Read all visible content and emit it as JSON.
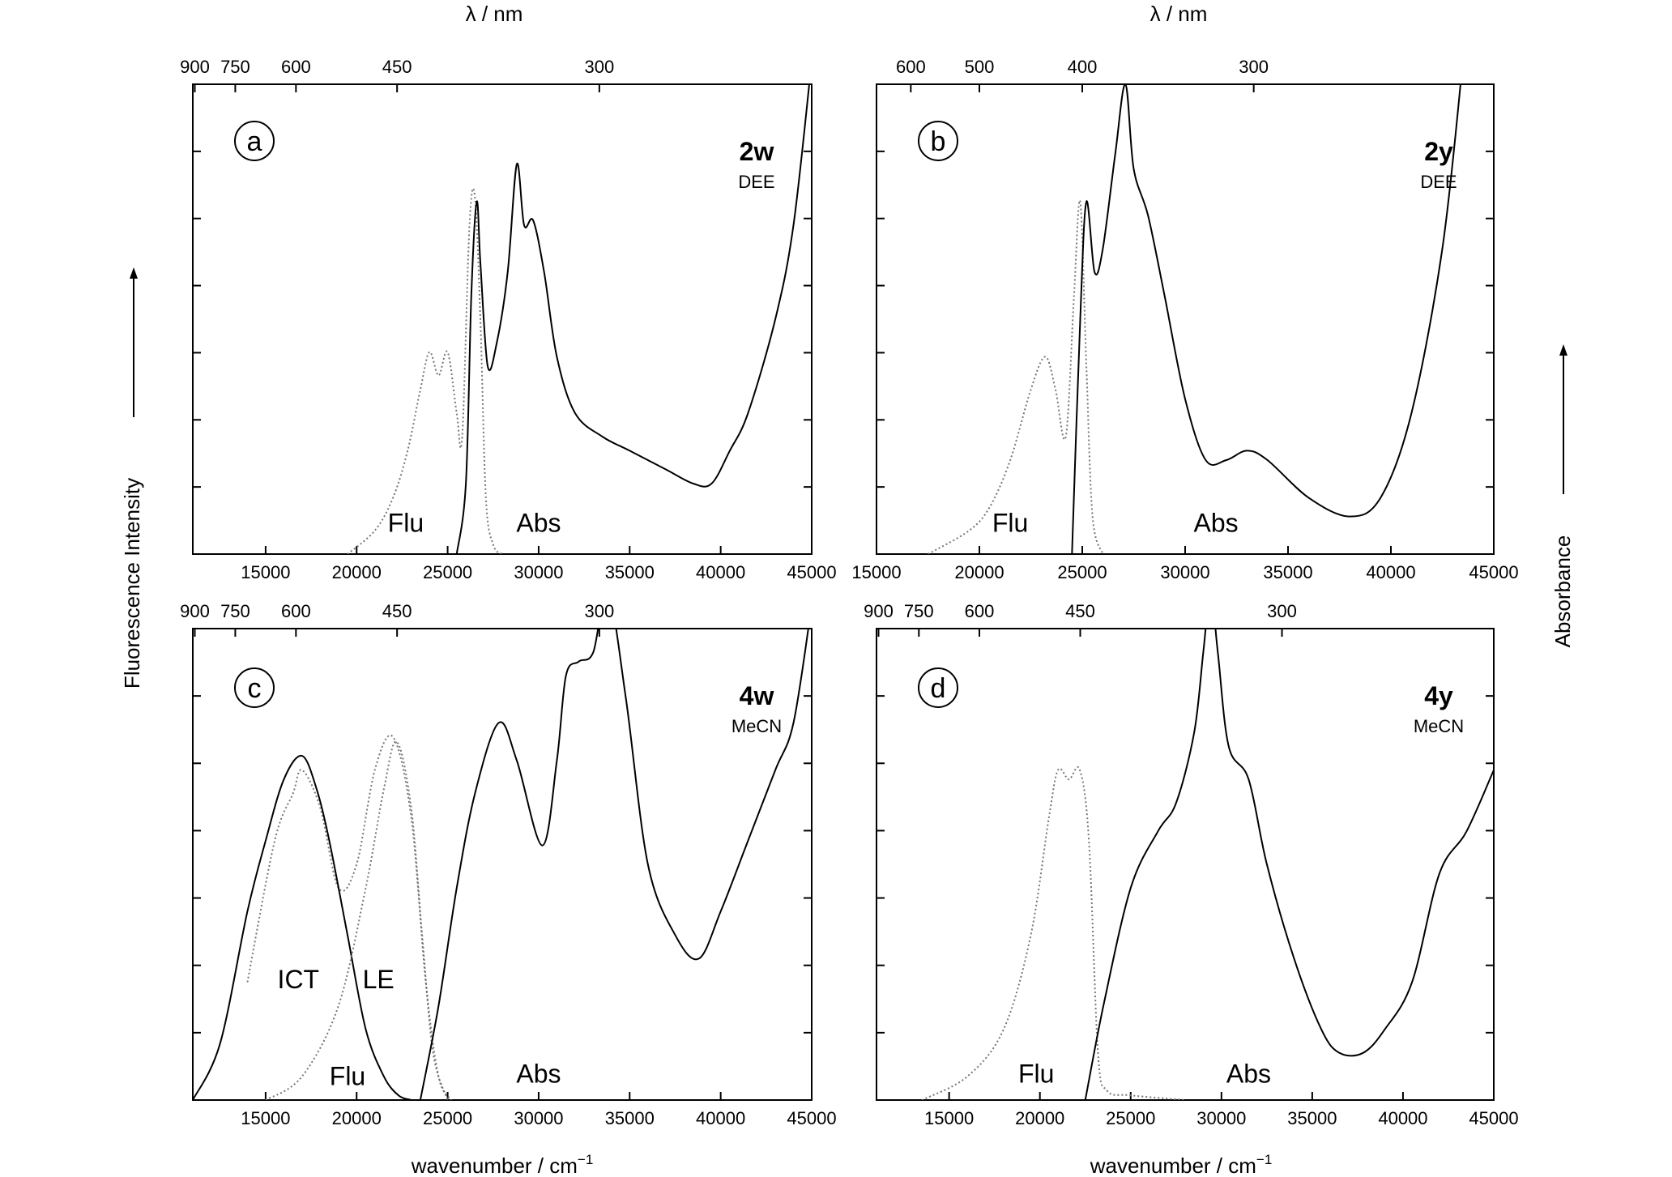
{
  "figure": {
    "top_axis_label": "λ / nm",
    "bottom_axis_label_base": "wavenumber / cm",
    "bottom_axis_label_sup": "−1",
    "left_axis_label": "Fluorescence Intensity",
    "right_axis_label": "Absorbance"
  },
  "chart_data": [
    {
      "type": "line",
      "panel": "a",
      "compound": "2w",
      "solvent": "DEE",
      "xlabel": "wavenumber / cm−1",
      "x2label": "λ / nm",
      "xlim": [
        11000,
        45000
      ],
      "ylim": [
        0,
        1
      ],
      "bottom_ticks": [
        "15000",
        "20000",
        "25000",
        "30000",
        "35000",
        "40000",
        "45000"
      ],
      "top_ticks": [
        "900",
        "750",
        "600",
        "450",
        "300"
      ],
      "labels": [
        "Flu",
        "Abs"
      ],
      "series": [
        {
          "name": "Flu",
          "style": "dotted",
          "x": [
            19500,
            21000,
            22000,
            22800,
            23500,
            24000,
            24500,
            25000,
            25500,
            25800,
            26200,
            26500,
            26800,
            27100,
            27500,
            28000
          ],
          "values": [
            0.0,
            0.05,
            0.12,
            0.22,
            0.35,
            0.43,
            0.38,
            0.43,
            0.3,
            0.25,
            0.7,
            0.76,
            0.5,
            0.12,
            0.02,
            0.0
          ]
        },
        {
          "name": "Abs",
          "style": "solid",
          "x": [
            25500,
            26000,
            26300,
            26600,
            26800,
            27200,
            27700,
            28300,
            28800,
            29200,
            29700,
            30300,
            31000,
            32000,
            33500,
            35000,
            37000,
            38500,
            39500,
            40500,
            41500,
            43000,
            44000,
            45000
          ],
          "values": [
            0.0,
            0.15,
            0.55,
            0.75,
            0.62,
            0.4,
            0.45,
            0.6,
            0.83,
            0.7,
            0.71,
            0.6,
            0.42,
            0.3,
            0.25,
            0.22,
            0.18,
            0.15,
            0.15,
            0.22,
            0.3,
            0.5,
            0.7,
            1.05
          ]
        }
      ]
    },
    {
      "type": "line",
      "panel": "b",
      "compound": "2y",
      "solvent": "DEE",
      "xlabel": "wavenumber / cm−1",
      "x2label": "λ / nm",
      "xlim": [
        15000,
        45000
      ],
      "ylim": [
        0,
        1
      ],
      "bottom_ticks": [
        "15000",
        "20000",
        "25000",
        "30000",
        "35000",
        "40000",
        "45000"
      ],
      "top_ticks": [
        "600",
        "500",
        "400",
        "300"
      ],
      "labels": [
        "Flu",
        "Abs"
      ],
      "series": [
        {
          "name": "Flu",
          "style": "dotted",
          "x": [
            17500,
            19500,
            20500,
            21500,
            22500,
            23200,
            23700,
            24200,
            24600,
            24900,
            25200,
            25500,
            26000
          ],
          "values": [
            0.0,
            0.05,
            0.1,
            0.2,
            0.35,
            0.42,
            0.35,
            0.25,
            0.55,
            0.75,
            0.4,
            0.08,
            0.0
          ]
        },
        {
          "name": "Abs",
          "style": "solid",
          "x": [
            24500,
            24900,
            25200,
            25600,
            26000,
            26600,
            27100,
            27500,
            28200,
            29000,
            30000,
            31000,
            32000,
            33000,
            34000,
            36000,
            38000,
            39500,
            41000,
            42500,
            43500
          ],
          "values": [
            0.0,
            0.5,
            0.75,
            0.6,
            0.65,
            0.85,
            1.0,
            0.82,
            0.72,
            0.55,
            0.33,
            0.2,
            0.2,
            0.22,
            0.2,
            0.12,
            0.08,
            0.12,
            0.3,
            0.65,
            1.05
          ]
        }
      ]
    },
    {
      "type": "line",
      "panel": "c",
      "compound": "4w",
      "solvent": "MeCN",
      "xlabel": "wavenumber / cm−1",
      "x2label": "λ / nm",
      "xlim": [
        11000,
        45000
      ],
      "ylim": [
        0,
        1
      ],
      "bottom_ticks": [
        "15000",
        "20000",
        "25000",
        "30000",
        "35000",
        "40000",
        "45000"
      ],
      "top_ticks": [
        "900",
        "750",
        "600",
        "450",
        "300"
      ],
      "labels": [
        "ICT",
        "LE",
        "Flu",
        "Abs"
      ],
      "series": [
        {
          "name": "Flu",
          "style": "dotted",
          "x": [
            14000,
            15500,
            16500,
            17000,
            18000,
            19000,
            20000,
            21000,
            22000,
            23000,
            23800,
            24500,
            25200
          ],
          "values": [
            0.25,
            0.55,
            0.65,
            0.7,
            0.62,
            0.45,
            0.5,
            0.7,
            0.77,
            0.6,
            0.25,
            0.05,
            0.0
          ]
        },
        {
          "name": "ICT",
          "style": "solid",
          "x": [
            11000,
            12500,
            14000,
            15000,
            16000,
            17000,
            17800,
            18500,
            19500,
            20500,
            21500,
            22300,
            23000
          ],
          "values": [
            0.0,
            0.12,
            0.4,
            0.55,
            0.68,
            0.73,
            0.66,
            0.55,
            0.35,
            0.15,
            0.05,
            0.01,
            0.0
          ]
        },
        {
          "name": "LE",
          "style": "dotted",
          "x": [
            15000,
            17000,
            19000,
            20500,
            21500,
            22200,
            23000,
            23600,
            24200,
            25000
          ],
          "values": [
            0.0,
            0.05,
            0.2,
            0.45,
            0.66,
            0.76,
            0.62,
            0.35,
            0.1,
            0.0
          ]
        },
        {
          "name": "Abs",
          "style": "solid",
          "x": [
            23500,
            24500,
            25500,
            26500,
            27800,
            28800,
            30200,
            31000,
            31500,
            32200,
            33000,
            33800,
            34800,
            36000,
            37500,
            38800,
            40000,
            41500,
            43000,
            44000,
            45000
          ],
          "values": [
            0.0,
            0.2,
            0.45,
            0.65,
            0.8,
            0.72,
            0.54,
            0.72,
            0.9,
            0.93,
            0.95,
            1.08,
            0.85,
            0.5,
            0.35,
            0.3,
            0.4,
            0.55,
            0.7,
            0.8,
            1.05
          ]
        }
      ]
    },
    {
      "type": "line",
      "panel": "d",
      "compound": "4y",
      "solvent": "MeCN",
      "xlabel": "wavenumber / cm−1",
      "x2label": "λ / nm",
      "xlim": [
        11000,
        45000
      ],
      "ylim": [
        0,
        1
      ],
      "bottom_ticks": [
        "15000",
        "20000",
        "25000",
        "30000",
        "35000",
        "40000",
        "45000"
      ],
      "top_ticks": [
        "900",
        "750",
        "600",
        "450",
        "300"
      ],
      "labels": [
        "Flu",
        "Abs"
      ],
      "series": [
        {
          "name": "Flu",
          "style": "dotted",
          "x": [
            13500,
            16000,
            18000,
            19500,
            20500,
            21000,
            21600,
            22200,
            22700,
            23200,
            23700,
            25000,
            28000
          ],
          "values": [
            0.0,
            0.05,
            0.15,
            0.35,
            0.6,
            0.7,
            0.68,
            0.7,
            0.55,
            0.1,
            0.02,
            0.01,
            0.0
          ]
        },
        {
          "name": "Abs",
          "style": "solid",
          "x": [
            22500,
            23500,
            25000,
            26500,
            27500,
            28500,
            29000,
            29400,
            29800,
            30400,
            31500,
            32500,
            34000,
            35500,
            36500,
            37800,
            39000,
            40500,
            42000,
            43500,
            45000
          ],
          "values": [
            0.0,
            0.2,
            0.45,
            0.57,
            0.63,
            0.78,
            0.95,
            1.08,
            0.95,
            0.75,
            0.68,
            0.5,
            0.3,
            0.15,
            0.1,
            0.1,
            0.15,
            0.25,
            0.48,
            0.57,
            0.7
          ]
        }
      ]
    }
  ]
}
